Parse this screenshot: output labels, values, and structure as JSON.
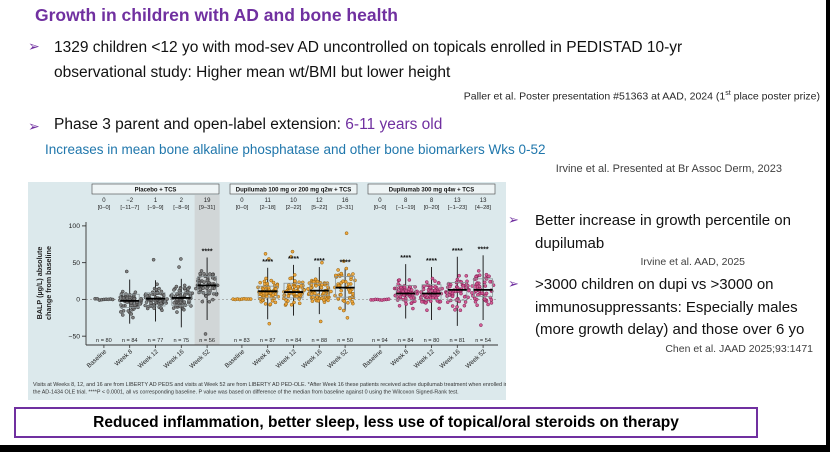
{
  "slide": {
    "bullet_glyph": "➢",
    "title": "Growth in children with AD and bone health",
    "bullet1": "1329 children <12 yo with mod-sev AD uncontrolled on topicals enrolled in PEDISTAD 10-yr observational study: Higher mean wt/BMI but lower height",
    "citation1_pre": "Paller et al. Poster presentation #51363 at AAD, 2024 (1",
    "citation1_sup": "st",
    "citation1_post": " place poster prize)",
    "bullet2_black": "Phase 3 parent and open-label extension: ",
    "bullet2_purple": "6-11 years old",
    "subheading": "Increases in mean bone alkaline phosphatase and other bone biomarkers Wks 0-52",
    "citation2": "Irvine et al. Presented at Br Assoc Derm, 2023",
    "right_bullet1": "Better increase in growth percentile on dupilumab",
    "citation3": "Irvine et al. AAD, 2025",
    "right_bullet2": ">3000 children on dupi vs >3000 on immunosuppressants: Especially males (more growth delay) and those over 6 yo",
    "citation4": "Chen et al. JAAD 2025;93:1471",
    "banner": "Reduced inflammation, better sleep, less use of topical/oral steroids on therapy"
  },
  "colors": {
    "accent_purple": "#7030a0",
    "teal_heading": "#2077ac",
    "panel_bg": "#dce9ec",
    "header_box_bg": "#eef4f5",
    "placebo_dot": "#787878",
    "placebo_edge": "#333333",
    "q2w_dot": "#f0a231",
    "q2w_edge": "#8a5d10",
    "q4w_dot": "#d1528f",
    "q4w_edge": "#7d2050",
    "shade_band": "#c9c9c9"
  },
  "chart_data": {
    "type": "scatter",
    "subtype": "beeswarm-with-boxplot",
    "ylabel_line1": "BALP (µg/L) absolute",
    "ylabel_line2": "change from baseline",
    "yticks": [
      100,
      50,
      0,
      -50
    ],
    "ylim": [
      -62,
      108
    ],
    "grid": false,
    "zero_reference_line": true,
    "timepoints": [
      "Baseline",
      "Week 8",
      "Week 12",
      "Week 16",
      "Week 52"
    ],
    "significance_label": "****",
    "footnote_line1": "Visits at Weeks 8, 12, and 16 are from LIBERTY AD PEDS and visits at Week 52 are from LIBERTY AD PED-OLE. *After Week 16 these patients received active dupilumab treatment when enrolled in",
    "footnote_line2": "the AD-1434 OLE trial. ****P < 0.0001, all vs corresponding baseline. P value was based on difference of the median from baseline against 0 using the Wilcoxon Signed-Rank test.",
    "groups": [
      {
        "label": "Placebo + TCS",
        "color_key": "placebo",
        "columns": [
          {
            "median_label": "0",
            "range_label": "[0–0]",
            "median": 0,
            "q1": 0,
            "q3": 0,
            "lo": 0,
            "hi": 0,
            "n_label": "n = 80",
            "n": 80,
            "baseline": true,
            "stars": false,
            "shaded": false,
            "outliers": []
          },
          {
            "median_label": "−2",
            "range_label": "[−11–7]",
            "median": -2,
            "q1": -11,
            "q3": 7,
            "lo": -33,
            "hi": 27,
            "n_label": "n = 84",
            "n": 84,
            "baseline": false,
            "stars": false,
            "shaded": false,
            "outliers": [
              38
            ]
          },
          {
            "median_label": "1",
            "range_label": "[−9–9]",
            "median": 1,
            "q1": -9,
            "q3": 9,
            "lo": -30,
            "hi": 26,
            "n_label": "n = 77",
            "n": 77,
            "baseline": false,
            "stars": false,
            "shaded": false,
            "outliers": [
              54
            ]
          },
          {
            "median_label": "2",
            "range_label": "[−8–9]",
            "median": 2,
            "q1": -8,
            "q3": 9,
            "lo": -38,
            "hi": 28,
            "n_label": "n = 75",
            "n": 75,
            "baseline": false,
            "stars": false,
            "shaded": false,
            "outliers": [
              55,
              44
            ]
          },
          {
            "median_label": "19",
            "range_label": "[9–31]",
            "median": 19,
            "q1": 9,
            "q3": 31,
            "lo": -28,
            "hi": 57,
            "n_label": "n = 56",
            "n": 56,
            "baseline": false,
            "stars": true,
            "shaded": true,
            "outliers": [
              -47
            ]
          }
        ]
      },
      {
        "label": "Dupilumab 100 mg or 200 mg q2w + TCS",
        "color_key": "q2w",
        "columns": [
          {
            "median_label": "0",
            "range_label": "[0–0]",
            "median": 0,
            "q1": 0,
            "q3": 0,
            "lo": 0,
            "hi": 0,
            "n_label": "n = 83",
            "n": 83,
            "baseline": true,
            "stars": false,
            "shaded": false,
            "outliers": []
          },
          {
            "median_label": "11",
            "range_label": "[2–18]",
            "median": 11,
            "q1": 2,
            "q3": 18,
            "lo": -27,
            "hi": 43,
            "n_label": "n = 87",
            "n": 87,
            "baseline": false,
            "stars": true,
            "shaded": false,
            "outliers": [
              62,
              55,
              -33
            ]
          },
          {
            "median_label": "10",
            "range_label": "[2–22]",
            "median": 10,
            "q1": 2,
            "q3": 22,
            "lo": -22,
            "hi": 47,
            "n_label": "n = 84",
            "n": 84,
            "baseline": false,
            "stars": true,
            "shaded": false,
            "outliers": [
              65,
              58
            ]
          },
          {
            "median_label": "12",
            "range_label": "[5–22]",
            "median": 12,
            "q1": 5,
            "q3": 22,
            "lo": -20,
            "hi": 44,
            "n_label": "n = 88",
            "n": 88,
            "baseline": false,
            "stars": true,
            "shaded": false,
            "outliers": [
              50,
              -30
            ]
          },
          {
            "median_label": "16",
            "range_label": "[3–31]",
            "median": 16,
            "q1": 3,
            "q3": 31,
            "lo": -16,
            "hi": 42,
            "n_label": "n = 50",
            "n": 50,
            "baseline": false,
            "stars": true,
            "shaded": false,
            "outliers": [
              90,
              52,
              -25
            ]
          }
        ]
      },
      {
        "label": "Dupilumab 300 mg q4w + TCS",
        "color_key": "q4w",
        "columns": [
          {
            "median_label": "0",
            "range_label": "[0–0]",
            "median": 0,
            "q1": 0,
            "q3": 0,
            "lo": 0,
            "hi": 0,
            "n_label": "n = 94",
            "n": 94,
            "baseline": true,
            "stars": false,
            "shaded": false,
            "outliers": []
          },
          {
            "median_label": "8",
            "range_label": "[−1–19]",
            "median": 8,
            "q1": -1,
            "q3": 19,
            "lo": -26,
            "hi": 48,
            "n_label": "n = 84",
            "n": 84,
            "baseline": false,
            "stars": true,
            "shaded": false,
            "outliers": []
          },
          {
            "median_label": "8",
            "range_label": "[0–20]",
            "median": 8,
            "q1": 0,
            "q3": 20,
            "lo": -28,
            "hi": 44,
            "n_label": "n = 80",
            "n": 80,
            "baseline": false,
            "stars": true,
            "shaded": false,
            "outliers": []
          },
          {
            "median_label": "13",
            "range_label": "[−1–23]",
            "median": 13,
            "q1": -1,
            "q3": 23,
            "lo": -36,
            "hi": 58,
            "n_label": "n = 81",
            "n": 81,
            "baseline": false,
            "stars": true,
            "shaded": false,
            "outliers": []
          },
          {
            "median_label": "13",
            "range_label": "[4–28]",
            "median": 13,
            "q1": 4,
            "q3": 28,
            "lo": -28,
            "hi": 60,
            "n_label": "n = 54",
            "n": 54,
            "baseline": false,
            "stars": true,
            "shaded": false,
            "outliers": [
              -35
            ]
          }
        ]
      }
    ]
  }
}
